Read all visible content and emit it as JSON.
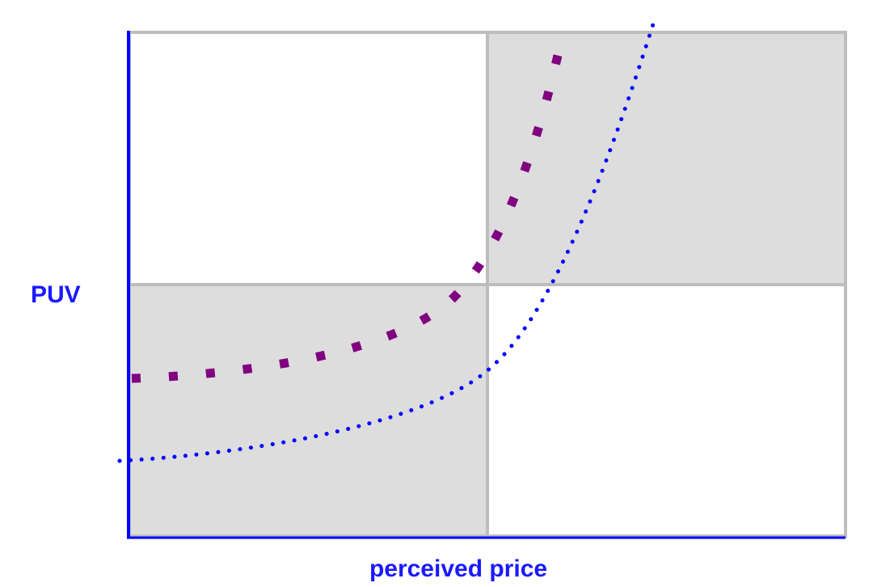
{
  "diagram": {
    "x_axis_label": "perceived price",
    "y_axis_label": "PUV",
    "colors": {
      "axis": "#0000ff",
      "grid_line": "#bdbdbd",
      "shaded_quadrant": "#dddddd",
      "unshaded_quadrant": "#ffffff",
      "upper_curve": "#800080",
      "lower_curve": "#0000ff"
    },
    "quadrants": [
      {
        "position": "top-left",
        "shaded": false
      },
      {
        "position": "top-right",
        "shaded": true
      },
      {
        "position": "bottom-left",
        "shaded": true
      },
      {
        "position": "bottom-right",
        "shaded": false
      }
    ],
    "curves": [
      {
        "style": "dotted",
        "dot": "large square",
        "color": "purple"
      },
      {
        "style": "dotted",
        "dot": "small round",
        "color": "blue"
      }
    ]
  }
}
